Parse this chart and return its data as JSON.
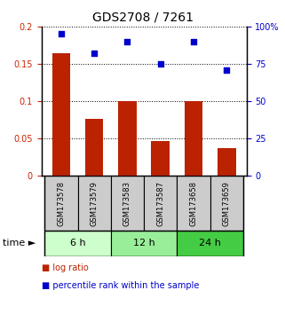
{
  "title": "GDS2708 / 7261",
  "categories": [
    "GSM173578",
    "GSM173579",
    "GSM173583",
    "GSM173587",
    "GSM173658",
    "GSM173659"
  ],
  "log_ratio": [
    0.165,
    0.077,
    0.1,
    0.047,
    0.1,
    0.037
  ],
  "percentile_rank": [
    95,
    82,
    90,
    75,
    90,
    71
  ],
  "bar_color": "#bb2200",
  "scatter_color": "#0000cc",
  "left_ylim": [
    0,
    0.2
  ],
  "right_ylim": [
    0,
    100
  ],
  "left_yticks": [
    0,
    0.05,
    0.1,
    0.15,
    0.2
  ],
  "left_yticklabels": [
    "0",
    "0.05",
    "0.1",
    "0.15",
    "0.2"
  ],
  "right_yticks": [
    0,
    25,
    50,
    75,
    100
  ],
  "right_yticklabels": [
    "0",
    "25",
    "50",
    "75",
    "100%"
  ],
  "time_groups": [
    {
      "label": "6 h",
      "start": 0,
      "end": 2,
      "color": "#ccffcc"
    },
    {
      "label": "12 h",
      "start": 2,
      "end": 4,
      "color": "#99ee99"
    },
    {
      "label": "24 h",
      "start": 4,
      "end": 6,
      "color": "#44cc44"
    }
  ],
  "legend_items": [
    {
      "label": "log ratio",
      "color": "#bb2200"
    },
    {
      "label": "percentile rank within the sample",
      "color": "#0000cc"
    }
  ],
  "title_fontsize": 10,
  "tick_fontsize": 7,
  "bar_width": 0.55,
  "sample_box_color": "#cccccc",
  "sample_text_fontsize": 6,
  "time_text_fontsize": 8
}
